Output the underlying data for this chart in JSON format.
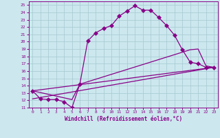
{
  "xlabel": "Windchill (Refroidissement éolien,°C)",
  "bg_color": "#cce8ee",
  "grid_color": "#aaccd4",
  "line_color": "#880088",
  "axis_color": "#880088",
  "xlim": [
    -0.5,
    23.5
  ],
  "ylim": [
    11,
    25.5
  ],
  "xticks": [
    0,
    1,
    2,
    3,
    4,
    5,
    6,
    7,
    8,
    9,
    10,
    11,
    12,
    13,
    14,
    15,
    16,
    17,
    18,
    19,
    20,
    21,
    22,
    23
  ],
  "yticks": [
    11,
    12,
    13,
    14,
    15,
    16,
    17,
    18,
    19,
    20,
    21,
    22,
    23,
    24,
    25
  ],
  "line1_x": [
    0,
    1,
    2,
    3,
    4,
    5,
    6,
    7,
    8,
    9,
    10,
    11,
    12,
    13,
    14,
    15,
    16,
    17,
    18,
    19,
    20,
    21,
    22,
    23
  ],
  "line1_y": [
    13.3,
    12.2,
    12.1,
    12.1,
    11.8,
    11.0,
    14.2,
    20.1,
    21.2,
    21.8,
    22.2,
    23.5,
    24.2,
    24.9,
    24.3,
    24.3,
    23.3,
    22.2,
    20.9,
    18.9,
    17.2,
    17.0,
    16.5,
    16.5
  ],
  "line2_x": [
    0,
    23
  ],
  "line2_y": [
    12.2,
    16.5
  ],
  "line3_x": [
    0,
    23
  ],
  "line3_y": [
    13.3,
    16.5
  ],
  "line4_x": [
    0,
    5,
    6,
    20,
    21,
    22,
    23
  ],
  "line4_y": [
    13.3,
    12.1,
    14.2,
    18.9,
    19.0,
    16.7,
    16.5
  ]
}
